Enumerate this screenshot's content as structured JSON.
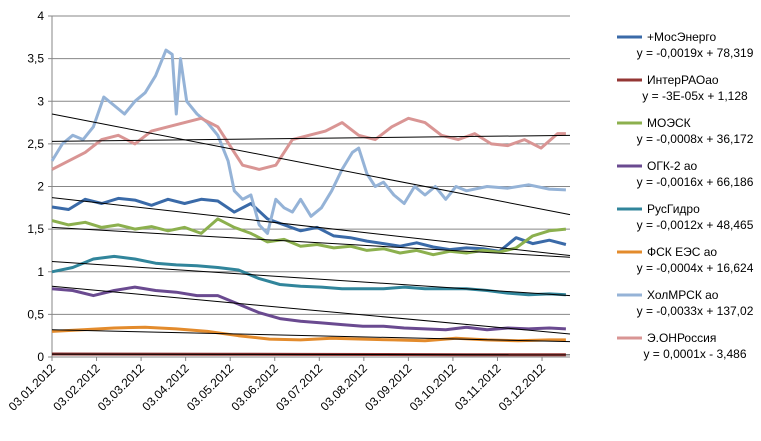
{
  "chart_data": {
    "type": "line",
    "title": "",
    "xlabel": "",
    "ylabel": "",
    "ylim": [
      0,
      4
    ],
    "y_ticks": [
      "0",
      "0,5",
      "1",
      "1,5",
      "2",
      "2,5",
      "3",
      "3,5",
      "4"
    ],
    "x_ticks": [
      "03.01.2012",
      "03.02.2012",
      "03.03.2012",
      "03.04.2012",
      "03.05.2012",
      "03.06.2012",
      "03.07.2012",
      "03.08.2012",
      "03.09.2012",
      "03.10.2012",
      "03.11.2012",
      "03.12.2012"
    ],
    "grid": "horizontal",
    "legend_position": "right",
    "series": [
      {
        "name": "+МосЭнерго",
        "color": "#3a6aa8",
        "trendline": "y = -0,0019x + 78,319",
        "trend_points": [
          [
            0,
            1.87
          ],
          [
            250,
            1.19
          ]
        ],
        "points": [
          [
            0,
            1.76
          ],
          [
            8,
            1.73
          ],
          [
            16,
            1.85
          ],
          [
            24,
            1.8
          ],
          [
            32,
            1.86
          ],
          [
            40,
            1.84
          ],
          [
            48,
            1.78
          ],
          [
            56,
            1.85
          ],
          [
            64,
            1.8
          ],
          [
            72,
            1.85
          ],
          [
            80,
            1.83
          ],
          [
            88,
            1.7
          ],
          [
            96,
            1.8
          ],
          [
            104,
            1.62
          ],
          [
            112,
            1.55
          ],
          [
            120,
            1.48
          ],
          [
            128,
            1.52
          ],
          [
            136,
            1.42
          ],
          [
            144,
            1.4
          ],
          [
            152,
            1.36
          ],
          [
            160,
            1.33
          ],
          [
            168,
            1.3
          ],
          [
            176,
            1.34
          ],
          [
            184,
            1.29
          ],
          [
            192,
            1.26
          ],
          [
            200,
            1.28
          ],
          [
            208,
            1.27
          ],
          [
            216,
            1.24
          ],
          [
            224,
            1.4
          ],
          [
            232,
            1.33
          ],
          [
            240,
            1.37
          ],
          [
            248,
            1.32
          ]
        ]
      },
      {
        "name": "ИнтерРАОао",
        "color": "#943634",
        "trendline": "y = -3E-05x + 1,128",
        "trend_points": [
          [
            0,
            0.034
          ],
          [
            250,
            0.026
          ]
        ],
        "points": [
          [
            0,
            0.035
          ],
          [
            40,
            0.034
          ],
          [
            80,
            0.033
          ],
          [
            120,
            0.031
          ],
          [
            160,
            0.029
          ],
          [
            200,
            0.027
          ],
          [
            248,
            0.026
          ]
        ]
      },
      {
        "name": "МОЭСК",
        "color": "#8cb04e",
        "trendline": "y = -0,0008x + 36,172",
        "trend_points": [
          [
            0,
            1.52
          ],
          [
            250,
            1.17
          ]
        ],
        "points": [
          [
            0,
            1.6
          ],
          [
            8,
            1.55
          ],
          [
            16,
            1.58
          ],
          [
            24,
            1.52
          ],
          [
            32,
            1.55
          ],
          [
            40,
            1.5
          ],
          [
            48,
            1.53
          ],
          [
            56,
            1.48
          ],
          [
            64,
            1.52
          ],
          [
            72,
            1.45
          ],
          [
            80,
            1.62
          ],
          [
            88,
            1.52
          ],
          [
            96,
            1.45
          ],
          [
            104,
            1.35
          ],
          [
            112,
            1.38
          ],
          [
            120,
            1.3
          ],
          [
            128,
            1.32
          ],
          [
            136,
            1.28
          ],
          [
            144,
            1.3
          ],
          [
            152,
            1.25
          ],
          [
            160,
            1.27
          ],
          [
            168,
            1.22
          ],
          [
            176,
            1.25
          ],
          [
            184,
            1.2
          ],
          [
            192,
            1.24
          ],
          [
            200,
            1.22
          ],
          [
            208,
            1.25
          ],
          [
            216,
            1.23
          ],
          [
            224,
            1.28
          ],
          [
            232,
            1.42
          ],
          [
            240,
            1.48
          ],
          [
            248,
            1.5
          ]
        ]
      },
      {
        "name": "ОГК-2 ао",
        "color": "#6a4a90",
        "trendline": "y = -0,0016x + 66,186",
        "trend_points": [
          [
            0,
            0.83
          ],
          [
            250,
            0.27
          ]
        ],
        "points": [
          [
            0,
            0.8
          ],
          [
            10,
            0.78
          ],
          [
            20,
            0.72
          ],
          [
            30,
            0.78
          ],
          [
            40,
            0.82
          ],
          [
            50,
            0.78
          ],
          [
            60,
            0.76
          ],
          [
            70,
            0.72
          ],
          [
            80,
            0.72
          ],
          [
            90,
            0.62
          ],
          [
            100,
            0.52
          ],
          [
            110,
            0.45
          ],
          [
            120,
            0.42
          ],
          [
            130,
            0.4
          ],
          [
            140,
            0.38
          ],
          [
            150,
            0.36
          ],
          [
            160,
            0.36
          ],
          [
            170,
            0.34
          ],
          [
            180,
            0.33
          ],
          [
            190,
            0.32
          ],
          [
            200,
            0.35
          ],
          [
            210,
            0.32
          ],
          [
            220,
            0.34
          ],
          [
            230,
            0.33
          ],
          [
            240,
            0.34
          ],
          [
            248,
            0.33
          ]
        ]
      },
      {
        "name": "РусГидро",
        "color": "#31859b",
        "trendline": "y = -0,0012x + 48,465",
        "trend_points": [
          [
            0,
            1.12
          ],
          [
            250,
            0.72
          ]
        ],
        "points": [
          [
            0,
            1.0
          ],
          [
            10,
            1.05
          ],
          [
            20,
            1.15
          ],
          [
            30,
            1.18
          ],
          [
            40,
            1.15
          ],
          [
            50,
            1.1
          ],
          [
            60,
            1.08
          ],
          [
            70,
            1.07
          ],
          [
            80,
            1.05
          ],
          [
            90,
            1.02
          ],
          [
            100,
            0.92
          ],
          [
            110,
            0.85
          ],
          [
            120,
            0.83
          ],
          [
            130,
            0.82
          ],
          [
            140,
            0.8
          ],
          [
            150,
            0.8
          ],
          [
            160,
            0.8
          ],
          [
            170,
            0.82
          ],
          [
            180,
            0.8
          ],
          [
            190,
            0.8
          ],
          [
            200,
            0.8
          ],
          [
            210,
            0.78
          ],
          [
            220,
            0.75
          ],
          [
            230,
            0.73
          ],
          [
            240,
            0.74
          ],
          [
            248,
            0.73
          ]
        ]
      },
      {
        "name": "ФСК ЕЭС ао",
        "color": "#e38b2c",
        "trendline": "y = -0,0004x + 16,624",
        "trend_points": [
          [
            0,
            0.32
          ],
          [
            250,
            0.18
          ]
        ],
        "points": [
          [
            0,
            0.3
          ],
          [
            15,
            0.32
          ],
          [
            30,
            0.34
          ],
          [
            45,
            0.35
          ],
          [
            60,
            0.33
          ],
          [
            75,
            0.3
          ],
          [
            90,
            0.25
          ],
          [
            105,
            0.21
          ],
          [
            120,
            0.2
          ],
          [
            135,
            0.22
          ],
          [
            150,
            0.21
          ],
          [
            165,
            0.2
          ],
          [
            180,
            0.19
          ],
          [
            195,
            0.22
          ],
          [
            210,
            0.2
          ],
          [
            225,
            0.19
          ],
          [
            240,
            0.2
          ],
          [
            248,
            0.2
          ]
        ]
      },
      {
        "name": "ХолМРСК ао",
        "color": "#95b3d7",
        "trendline": "y = -0,0033x + 137,02",
        "trend_points": [
          [
            0,
            2.85
          ],
          [
            250,
            1.67
          ]
        ],
        "points": [
          [
            0,
            2.3
          ],
          [
            5,
            2.5
          ],
          [
            10,
            2.6
          ],
          [
            15,
            2.55
          ],
          [
            20,
            2.7
          ],
          [
            25,
            3.05
          ],
          [
            30,
            2.95
          ],
          [
            35,
            2.85
          ],
          [
            40,
            3.0
          ],
          [
            45,
            3.1
          ],
          [
            50,
            3.3
          ],
          [
            55,
            3.6
          ],
          [
            58,
            3.55
          ],
          [
            60,
            2.85
          ],
          [
            62,
            3.5
          ],
          [
            65,
            3.0
          ],
          [
            70,
            2.85
          ],
          [
            75,
            2.75
          ],
          [
            80,
            2.6
          ],
          [
            85,
            2.3
          ],
          [
            88,
            1.95
          ],
          [
            92,
            1.85
          ],
          [
            96,
            1.9
          ],
          [
            100,
            1.55
          ],
          [
            104,
            1.45
          ],
          [
            108,
            1.85
          ],
          [
            112,
            1.75
          ],
          [
            116,
            1.7
          ],
          [
            120,
            1.85
          ],
          [
            125,
            1.65
          ],
          [
            130,
            1.75
          ],
          [
            135,
            1.95
          ],
          [
            140,
            2.2
          ],
          [
            145,
            2.4
          ],
          [
            148,
            2.45
          ],
          [
            152,
            2.15
          ],
          [
            156,
            2.0
          ],
          [
            160,
            2.05
          ],
          [
            165,
            1.9
          ],
          [
            170,
            1.8
          ],
          [
            175,
            2.0
          ],
          [
            180,
            1.9
          ],
          [
            185,
            2.0
          ],
          [
            190,
            1.85
          ],
          [
            195,
            2.0
          ],
          [
            200,
            1.95
          ],
          [
            210,
            2.0
          ],
          [
            220,
            1.98
          ],
          [
            230,
            2.02
          ],
          [
            240,
            1.97
          ],
          [
            248,
            1.96
          ]
        ]
      },
      {
        "name": "Э.ОНРоссия",
        "color": "#d99594",
        "trendline": "y = 0,0001x - 3,486",
        "trend_points": [
          [
            0,
            2.53
          ],
          [
            250,
            2.6
          ]
        ],
        "points": [
          [
            0,
            2.2
          ],
          [
            8,
            2.3
          ],
          [
            16,
            2.4
          ],
          [
            24,
            2.55
          ],
          [
            32,
            2.6
          ],
          [
            40,
            2.5
          ],
          [
            48,
            2.65
          ],
          [
            56,
            2.7
          ],
          [
            64,
            2.75
          ],
          [
            72,
            2.8
          ],
          [
            80,
            2.7
          ],
          [
            88,
            2.4
          ],
          [
            92,
            2.25
          ],
          [
            100,
            2.2
          ],
          [
            108,
            2.25
          ],
          [
            116,
            2.55
          ],
          [
            124,
            2.6
          ],
          [
            132,
            2.65
          ],
          [
            140,
            2.75
          ],
          [
            148,
            2.6
          ],
          [
            156,
            2.55
          ],
          [
            164,
            2.7
          ],
          [
            172,
            2.8
          ],
          [
            180,
            2.75
          ],
          [
            188,
            2.6
          ],
          [
            196,
            2.55
          ],
          [
            204,
            2.62
          ],
          [
            212,
            2.5
          ],
          [
            220,
            2.48
          ],
          [
            228,
            2.55
          ],
          [
            236,
            2.45
          ],
          [
            244,
            2.62
          ],
          [
            248,
            2.62
          ]
        ]
      }
    ]
  }
}
